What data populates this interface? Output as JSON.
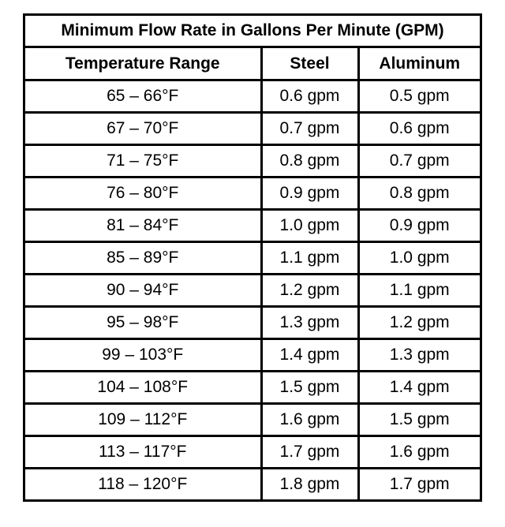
{
  "title": "Minimum Flow Rate in Gallons Per Minute (GPM)",
  "columns": [
    "Temperature Range",
    "Steel",
    "Aluminum"
  ],
  "rows": [
    [
      "65 – 66°F",
      "0.6 gpm",
      "0.5 gpm"
    ],
    [
      "67 – 70°F",
      "0.7 gpm",
      "0.6 gpm"
    ],
    [
      "71 – 75°F",
      "0.8 gpm",
      "0.7 gpm"
    ],
    [
      "76 – 80°F",
      "0.9 gpm",
      "0.8 gpm"
    ],
    [
      "81 – 84°F",
      "1.0 gpm",
      "0.9 gpm"
    ],
    [
      "85 – 89°F",
      "1.1 gpm",
      "1.0 gpm"
    ],
    [
      "90 – 94°F",
      "1.2 gpm",
      "1.1 gpm"
    ],
    [
      "95 – 98°F",
      "1.3 gpm",
      "1.2 gpm"
    ],
    [
      "99 – 103°F",
      "1.4 gpm",
      "1.3 gpm"
    ],
    [
      "104 – 108°F",
      "1.5 gpm",
      "1.4 gpm"
    ],
    [
      "109 – 112°F",
      "1.6 gpm",
      "1.5 gpm"
    ],
    [
      "113 – 117°F",
      "1.7 gpm",
      "1.6 gpm"
    ],
    [
      "118 – 120°F",
      "1.8 gpm",
      "1.7 gpm"
    ]
  ]
}
